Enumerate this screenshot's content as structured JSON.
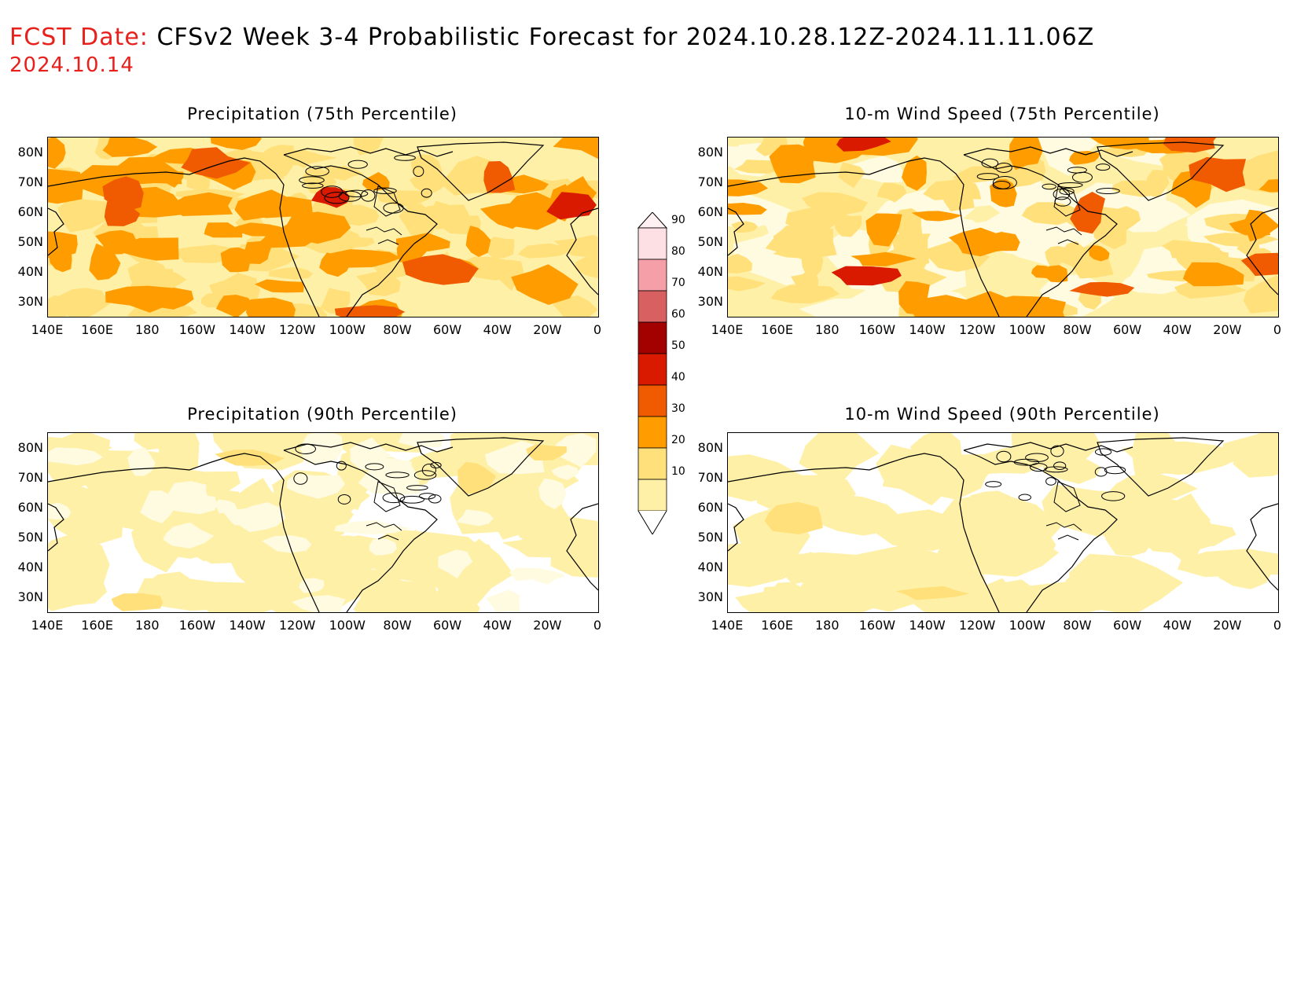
{
  "header": {
    "fcst_label": "FCST Date:",
    "title": "CFSv2 Week 3-4 Probabilistic Forecast for 2024.10.28.12Z-2024.11.11.06Z",
    "fcst_date": "2024.10.14"
  },
  "panels": [
    {
      "id": "precip75",
      "title": "Precipitation (75th Percentile)",
      "intensity": "high"
    },
    {
      "id": "wind75",
      "title": "10-m Wind Speed (75th Percentile)",
      "intensity": "medium"
    },
    {
      "id": "precip90",
      "title": "Precipitation (90th Percentile)",
      "intensity": "low"
    },
    {
      "id": "wind90",
      "title": "10-m Wind Speed (90th Percentile)",
      "intensity": "verylow"
    }
  ],
  "axes": {
    "lat_labels": [
      "80N",
      "70N",
      "60N",
      "50N",
      "40N",
      "30N"
    ],
    "lon_labels": [
      "140E",
      "160E",
      "180",
      "160W",
      "140W",
      "120W",
      "100W",
      "80W",
      "60W",
      "40W",
      "20W",
      "0"
    ]
  },
  "colorbar": {
    "levels": [
      "10",
      "20",
      "30",
      "40",
      "50",
      "60",
      "70",
      "80",
      "90"
    ],
    "colors": [
      "#fffbe0",
      "#fff0a8",
      "#ffe07a",
      "#ff9d00",
      "#f05a00",
      "#d91a00",
      "#a30000",
      "#d96060",
      "#f5a0a8",
      "#fde0e4"
    ]
  }
}
